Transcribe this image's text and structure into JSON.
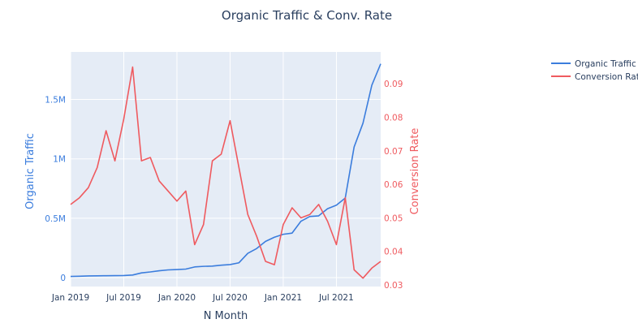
{
  "chart_data": {
    "type": "line",
    "title": "Organic Traffic & Conv. Rate",
    "xlabel": "N Month",
    "ylabel_left": "Organic Traffic",
    "ylabel_right": "Conversion Rate",
    "x_range": [
      "2019-01",
      "2021-12"
    ],
    "x_ticks": [
      {
        "date": "2019-01",
        "label": "Jan 2019"
      },
      {
        "date": "2019-07",
        "label": "Jul 2019"
      },
      {
        "date": "2020-01",
        "label": "Jan 2020"
      },
      {
        "date": "2020-07",
        "label": "Jul 2020"
      },
      {
        "date": "2021-01",
        "label": "Jan 2021"
      },
      {
        "date": "2021-07",
        "label": "Jul 2021"
      }
    ],
    "y_left_range": [
      -75000,
      1900000
    ],
    "y_left_ticks": [
      {
        "value": 0,
        "label": "0"
      },
      {
        "value": 500000,
        "label": "0.5M"
      },
      {
        "value": 1000000,
        "label": "1M"
      },
      {
        "value": 1500000,
        "label": "1.5M"
      }
    ],
    "y_right_range": [
      0.0295,
      0.0995
    ],
    "y_right_ticks": [
      {
        "value": 0.03,
        "label": "0.03"
      },
      {
        "value": 0.04,
        "label": "0.04"
      },
      {
        "value": 0.05,
        "label": "0.05"
      },
      {
        "value": 0.06,
        "label": "0.06"
      },
      {
        "value": 0.07,
        "label": "0.07"
      },
      {
        "value": 0.08,
        "label": "0.08"
      },
      {
        "value": 0.09,
        "label": "0.09"
      }
    ],
    "grid": true,
    "legend_position": "top-right",
    "colors": {
      "traffic": "#3b7ddd",
      "conversion": "#ef5a5f",
      "plot_bg": "#e5ecf6",
      "grid": "#ffffff",
      "text": "#2a3f5f"
    },
    "x": [
      "2019-01",
      "2019-02",
      "2019-03",
      "2019-04",
      "2019-05",
      "2019-06",
      "2019-07",
      "2019-08",
      "2019-09",
      "2019-10",
      "2019-11",
      "2019-12",
      "2020-01",
      "2020-02",
      "2020-03",
      "2020-04",
      "2020-05",
      "2020-06",
      "2020-07",
      "2020-08",
      "2020-09",
      "2020-10",
      "2020-11",
      "2020-12",
      "2021-01",
      "2021-02",
      "2021-03",
      "2021-04",
      "2021-05",
      "2021-06",
      "2021-07",
      "2021-08",
      "2021-09",
      "2021-10",
      "2021-11",
      "2021-12"
    ],
    "series": [
      {
        "name": "Organic Traffic",
        "axis": "left",
        "values": [
          10000,
          12000,
          14000,
          15000,
          16000,
          17000,
          18000,
          22000,
          40000,
          48000,
          58000,
          65000,
          68000,
          72000,
          90000,
          95000,
          97000,
          105000,
          110000,
          125000,
          205000,
          245000,
          305000,
          340000,
          365000,
          375000,
          475000,
          515000,
          520000,
          580000,
          610000,
          670000,
          1100000,
          1300000,
          1620000,
          1800000
        ]
      },
      {
        "name": "Conversion Rat",
        "axis": "right",
        "values": [
          0.054,
          0.056,
          0.059,
          0.065,
          0.076,
          0.067,
          0.0795,
          0.095,
          0.067,
          0.068,
          0.061,
          0.058,
          0.055,
          0.058,
          0.042,
          0.048,
          0.067,
          0.069,
          0.079,
          0.065,
          0.051,
          0.0445,
          0.037,
          0.036,
          0.048,
          0.053,
          0.05,
          0.051,
          0.054,
          0.049,
          0.042,
          0.056,
          0.0345,
          0.032,
          0.035,
          0.037
        ]
      }
    ]
  }
}
